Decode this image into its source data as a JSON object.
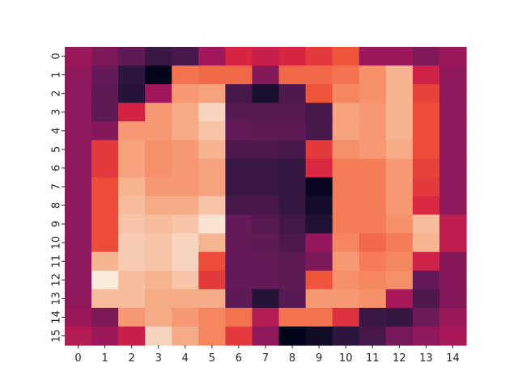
{
  "chart_data": {
    "type": "heatmap",
    "title": "",
    "xlabel": "",
    "ylabel": "",
    "x_tick_labels": [
      "0",
      "1",
      "2",
      "3",
      "4",
      "5",
      "6",
      "7",
      "8",
      "9",
      "10",
      "11",
      "12",
      "13",
      "14"
    ],
    "y_tick_labels": [
      "0",
      "1",
      "2",
      "3",
      "4",
      "5",
      "6",
      "7",
      "8",
      "9",
      "10",
      "11",
      "12",
      "13",
      "14",
      "15"
    ],
    "colormap": "rocket",
    "vmin": 0,
    "vmax": 1,
    "colorbar": false,
    "grid": false,
    "values": [
      [
        0.43,
        0.36,
        0.28,
        0.18,
        0.22,
        0.44,
        0.55,
        0.52,
        0.55,
        0.6,
        0.66,
        0.43,
        0.43,
        0.37,
        0.43
      ],
      [
        0.4,
        0.3,
        0.14,
        0.0,
        0.72,
        0.7,
        0.7,
        0.38,
        0.7,
        0.7,
        0.72,
        0.78,
        0.86,
        0.53,
        0.4
      ],
      [
        0.4,
        0.28,
        0.12,
        0.44,
        0.8,
        0.82,
        0.22,
        0.08,
        0.24,
        0.66,
        0.76,
        0.78,
        0.86,
        0.62,
        0.4
      ],
      [
        0.4,
        0.28,
        0.54,
        0.8,
        0.84,
        0.94,
        0.26,
        0.26,
        0.26,
        0.22,
        0.82,
        0.8,
        0.86,
        0.64,
        0.4
      ],
      [
        0.4,
        0.38,
        0.8,
        0.8,
        0.84,
        0.9,
        0.3,
        0.28,
        0.28,
        0.22,
        0.82,
        0.8,
        0.86,
        0.64,
        0.4
      ],
      [
        0.4,
        0.6,
        0.82,
        0.78,
        0.8,
        0.86,
        0.24,
        0.24,
        0.22,
        0.6,
        0.78,
        0.8,
        0.84,
        0.64,
        0.4
      ],
      [
        0.4,
        0.6,
        0.82,
        0.78,
        0.8,
        0.82,
        0.18,
        0.18,
        0.16,
        0.56,
        0.74,
        0.74,
        0.8,
        0.62,
        0.4
      ],
      [
        0.4,
        0.64,
        0.86,
        0.8,
        0.8,
        0.82,
        0.18,
        0.18,
        0.16,
        0.02,
        0.74,
        0.74,
        0.8,
        0.6,
        0.4
      ],
      [
        0.4,
        0.64,
        0.88,
        0.84,
        0.84,
        0.9,
        0.22,
        0.22,
        0.16,
        0.06,
        0.74,
        0.74,
        0.8,
        0.56,
        0.4
      ],
      [
        0.4,
        0.64,
        0.9,
        0.88,
        0.9,
        0.98,
        0.3,
        0.26,
        0.2,
        0.1,
        0.74,
        0.74,
        0.78,
        0.88,
        0.5
      ],
      [
        0.4,
        0.64,
        0.92,
        0.9,
        0.94,
        0.86,
        0.3,
        0.28,
        0.24,
        0.42,
        0.76,
        0.7,
        0.74,
        0.86,
        0.5
      ],
      [
        0.4,
        0.86,
        0.92,
        0.9,
        0.94,
        0.64,
        0.3,
        0.3,
        0.28,
        0.36,
        0.8,
        0.74,
        0.76,
        0.53,
        0.38
      ],
      [
        0.4,
        1.0,
        0.88,
        0.86,
        0.9,
        0.6,
        0.3,
        0.3,
        0.28,
        0.66,
        0.78,
        0.76,
        0.78,
        0.3,
        0.38
      ],
      [
        0.4,
        0.88,
        0.88,
        0.84,
        0.84,
        0.84,
        0.28,
        0.12,
        0.26,
        0.8,
        0.8,
        0.78,
        0.46,
        0.24,
        0.38
      ],
      [
        0.43,
        0.36,
        0.8,
        0.84,
        0.8,
        0.76,
        0.72,
        0.48,
        0.72,
        0.72,
        0.58,
        0.18,
        0.16,
        0.32,
        0.43
      ],
      [
        0.48,
        0.43,
        0.52,
        0.94,
        0.84,
        0.76,
        0.6,
        0.4,
        0.0,
        0.05,
        0.14,
        0.22,
        0.34,
        0.4,
        0.46
      ]
    ]
  }
}
